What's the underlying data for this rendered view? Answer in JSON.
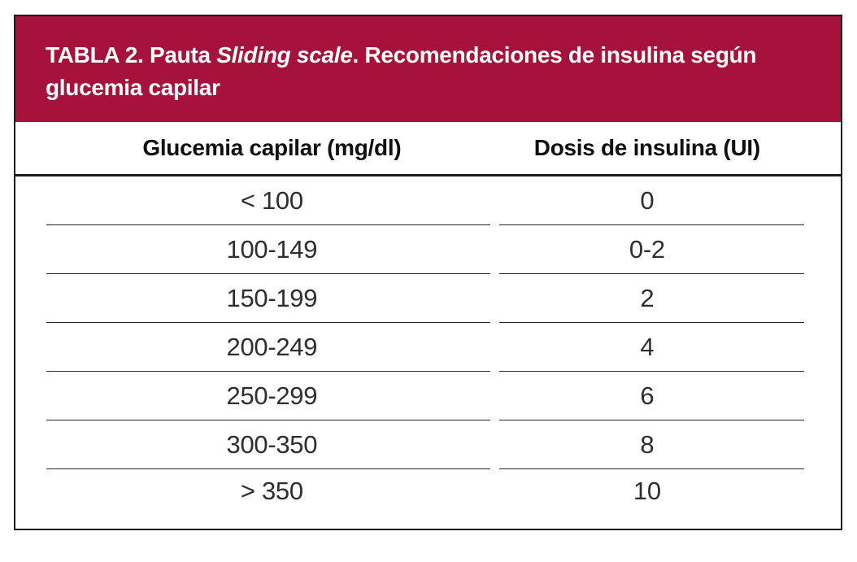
{
  "table": {
    "title": {
      "lead": "TABLA 2. Pauta ",
      "italic": "Sliding scale",
      "rest": ". Recomendaciones de insulina según\nglucemia capilar"
    },
    "columns": [
      "Glucemia capilar (mg/dl)",
      "Dosis de insulina (UI)"
    ],
    "rows": [
      {
        "glucemia": "< 100",
        "dosis": "0"
      },
      {
        "glucemia": "100-149",
        "dosis": "0-2"
      },
      {
        "glucemia": "150-199",
        "dosis": "2"
      },
      {
        "glucemia": "200-249",
        "dosis": "4"
      },
      {
        "glucemia": "250-299",
        "dosis": "6"
      },
      {
        "glucemia": "300-350",
        "dosis": "8"
      },
      {
        "glucemia": "> 350",
        "dosis": "10"
      }
    ]
  },
  "colors": {
    "header_bg": "#a7123c",
    "header_text": "#ffffff",
    "frame": "#1c1c1c",
    "body_text": "#2e2e2e",
    "divider": "#2b2b2b"
  }
}
